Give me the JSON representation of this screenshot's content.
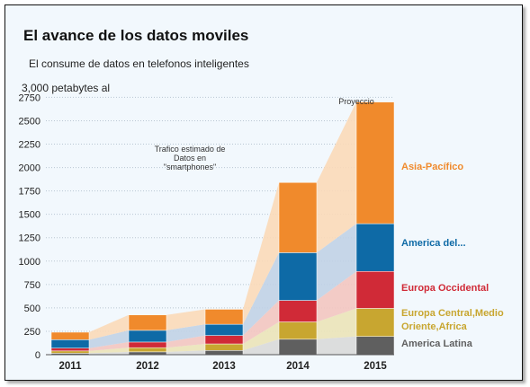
{
  "chart_data": {
    "type": "bar",
    "stacked": true,
    "title": "El avance de los datos moviles",
    "subtitle": "El consume de datos en telefonos inteligentes",
    "unit_label": "3,000 petabytes al",
    "categories": [
      "2011",
      "2012",
      "2013",
      "2014",
      "2015"
    ],
    "y_ticks": [
      "0",
      "250",
      "500",
      "750",
      "1000",
      "1250",
      "1500",
      "1750",
      "2000",
      "2250",
      "2500",
      "2750"
    ],
    "ylim": [
      0,
      2850
    ],
    "annotations": {
      "traffic": [
        "Trafico estimado de",
        "Datos en",
        "\"smartphones\""
      ],
      "projection": "Proyeccio"
    },
    "series": [
      {
        "name": "America Latina",
        "color": "#5f5f5f",
        "band_color": "#d9d9d9",
        "values": [
          15,
          30,
          45,
          165,
          195
        ]
      },
      {
        "name": "Europa Central,Medio",
        "name_line2": "Oriente,Africa",
        "color": "#c8a630",
        "band_color": "#ebe3b8",
        "values": [
          25,
          45,
          70,
          185,
          300
        ]
      },
      {
        "name": "Europa Occidental",
        "color": "#d02a37",
        "band_color": "#f3c5c0",
        "values": [
          30,
          60,
          90,
          230,
          395
        ]
      },
      {
        "name": "America del...",
        "color": "#0e6aa6",
        "band_color": "#c1d2e6",
        "values": [
          90,
          125,
          120,
          510,
          510
        ]
      },
      {
        "name": "Asia-Pacífico",
        "color": "#f08a2c",
        "band_color": "#fbd9b8",
        "values": [
          80,
          165,
          160,
          750,
          1300
        ]
      }
    ]
  }
}
